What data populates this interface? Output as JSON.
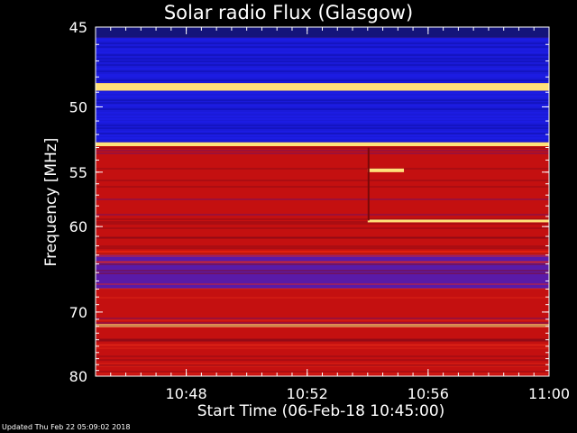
{
  "updated": "Updated Thu Feb 22 05:09:02 2018",
  "colors": {
    "background": "#000000",
    "axis": "#ffffff",
    "low": "#1010d0",
    "mid": "#c01010",
    "high": "#ffe060"
  },
  "chart_data": {
    "type": "heatmap",
    "title": "Solar radio Flux (Glasgow)",
    "xlabel": "Start Time (06-Feb-18 10:45:00)",
    "ylabel": "Frequency [MHz]",
    "x_ticks": [
      "10:48",
      "10:52",
      "10:56",
      "11:00"
    ],
    "x_tick_minutes": [
      48,
      52,
      56,
      60
    ],
    "xlim_minutes": [
      45,
      60
    ],
    "y_ticks": [
      45,
      50,
      55,
      60,
      70,
      80
    ],
    "ylim": [
      45,
      80
    ],
    "y_scale": "reciprocal",
    "colormap": [
      "blue",
      "red",
      "yellow"
    ],
    "bands": [
      {
        "fmin": 45.0,
        "fmax": 45.6,
        "level": "blue-dark"
      },
      {
        "fmin": 45.6,
        "fmax": 48.4,
        "level": "blue"
      },
      {
        "fmin": 48.4,
        "fmax": 48.9,
        "level": "yellow"
      },
      {
        "fmin": 48.9,
        "fmax": 52.6,
        "level": "blue"
      },
      {
        "fmin": 52.6,
        "fmax": 52.9,
        "level": "yellow"
      },
      {
        "fmin": 52.9,
        "fmax": 62.5,
        "level": "red"
      },
      {
        "fmin": 62.5,
        "fmax": 63.0,
        "level": "red-bright"
      },
      {
        "fmin": 63.0,
        "fmax": 67.0,
        "level": "purple"
      },
      {
        "fmin": 67.0,
        "fmax": 71.7,
        "level": "red"
      },
      {
        "fmin": 71.7,
        "fmax": 72.1,
        "level": "yellow"
      },
      {
        "fmin": 72.1,
        "fmax": 80.0,
        "level": "red"
      }
    ],
    "features": [
      {
        "type": "hline",
        "freq": 59.4,
        "t_start": 54,
        "t_end": 60,
        "level": "yellow"
      },
      {
        "type": "block",
        "fmin": 54.7,
        "fmax": 55.0,
        "t_start": 54,
        "t_end": 55.2,
        "level": "yellow"
      },
      {
        "type": "vline",
        "time": 54.0,
        "fmin": 53.0,
        "fmax": 59.4,
        "level": "dark"
      }
    ]
  }
}
